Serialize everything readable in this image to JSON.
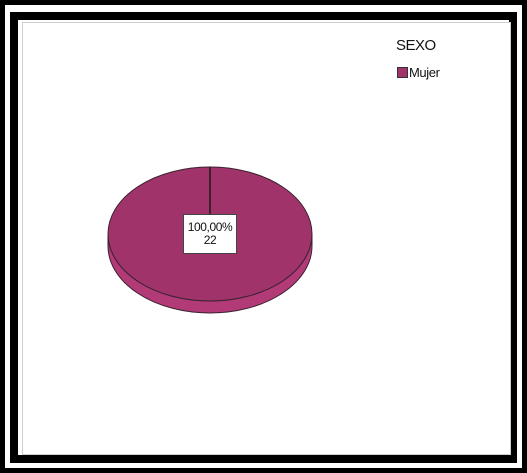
{
  "chart_data": {
    "type": "pie",
    "legend_title": "SEXO",
    "legend_position": "top-right",
    "slices": [
      {
        "label": "Mujer",
        "percent_label": "100,00%",
        "count_label": "22",
        "value": 22,
        "color": "#a0336a"
      }
    ]
  },
  "colors": {
    "slice_top": "#a0336a",
    "slice_side": "#b23a77",
    "edge": "#3a2230"
  }
}
